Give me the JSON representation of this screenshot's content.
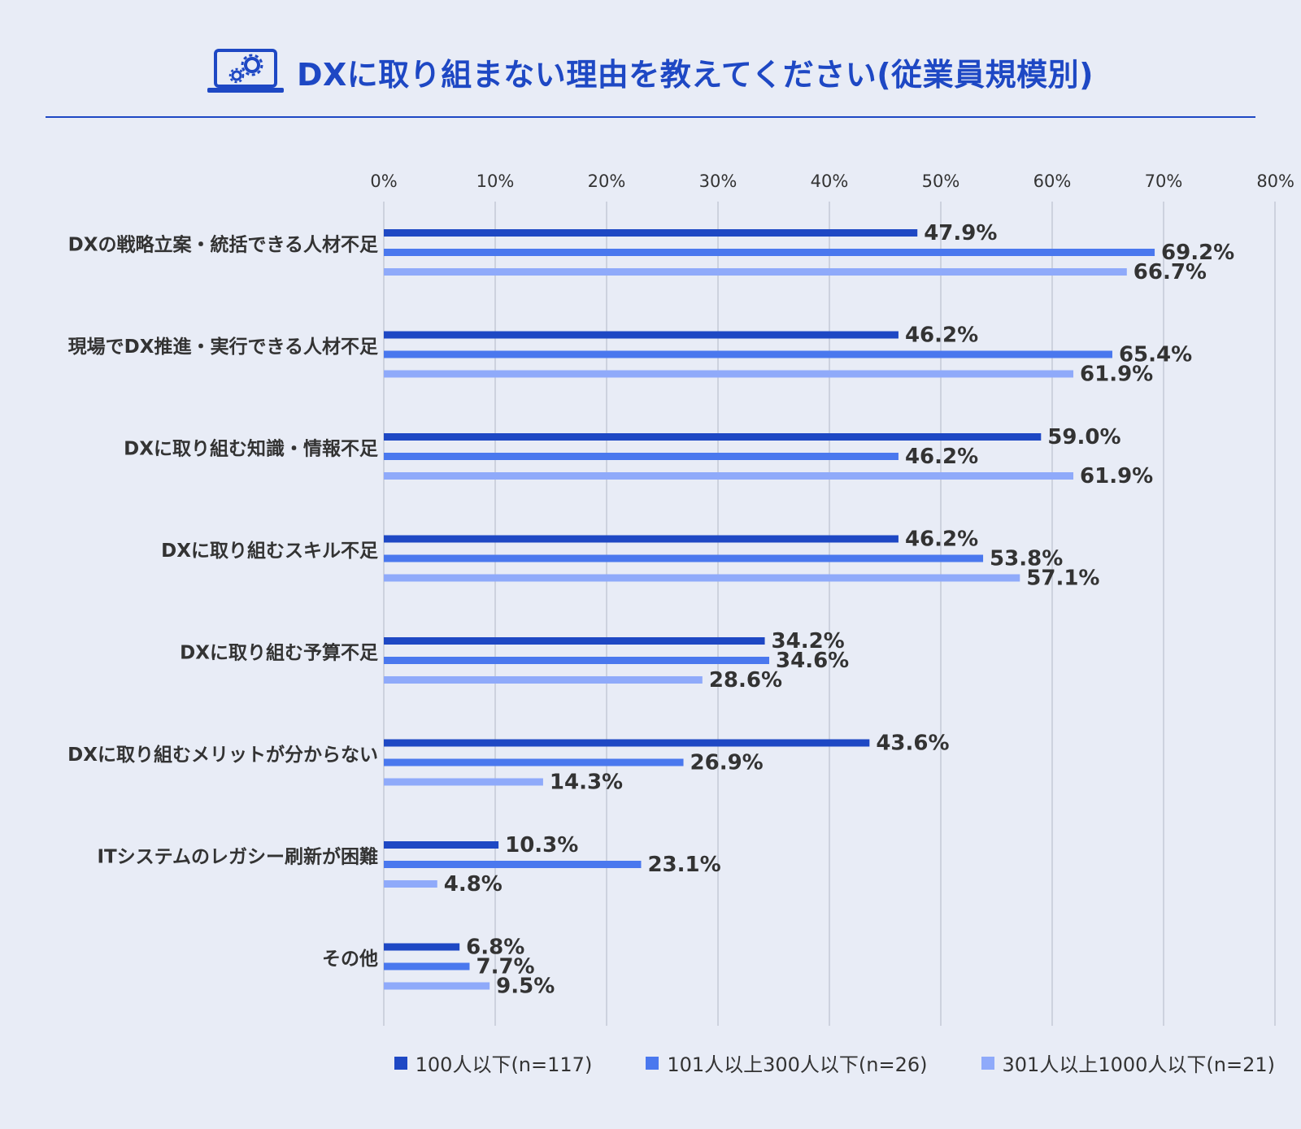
{
  "title": "DXに取り組まない理由を教えてください(従業員規模別)",
  "colors": {
    "title": "#1e48c4",
    "series1": "#1e48c4",
    "series2": "#4a78ee",
    "series3": "#8faafa",
    "grid": "#c4c9d6"
  },
  "chart_data": {
    "type": "bar",
    "orientation": "horizontal",
    "title": "DXに取り組まない理由を教えてください(従業員規模別)",
    "xlim": [
      0,
      80
    ],
    "ticks": [
      "0%",
      "10%",
      "20%",
      "30%",
      "40%",
      "50%",
      "60%",
      "70%",
      "80%"
    ],
    "tick_values": [
      0,
      10,
      20,
      30,
      40,
      50,
      60,
      70,
      80
    ],
    "grid": true,
    "legend_position": "bottom-right",
    "categories": [
      "DXの戦略立案・統括できる人材不足",
      "現場でDX推進・実行できる人材不足",
      "DXに取り組む知識・情報不足",
      "DXに取り組むスキル不足",
      "DXに取り組む予算不足",
      "DXに取り組むメリットが分からない",
      "ITシステムのレガシー刷新が困難",
      "その他"
    ],
    "series": [
      {
        "name": "100人以下(n=117)",
        "values": [
          47.9,
          46.2,
          59.0,
          46.2,
          34.2,
          43.6,
          10.3,
          6.8
        ]
      },
      {
        "name": "101人以上300人以下(n=26)",
        "values": [
          69.2,
          65.4,
          46.2,
          53.8,
          34.6,
          26.9,
          23.1,
          7.7
        ]
      },
      {
        "name": "301人以上1000人以下(n=21)",
        "values": [
          66.7,
          61.9,
          61.9,
          57.1,
          28.6,
          14.3,
          4.8,
          9.5
        ]
      }
    ]
  }
}
